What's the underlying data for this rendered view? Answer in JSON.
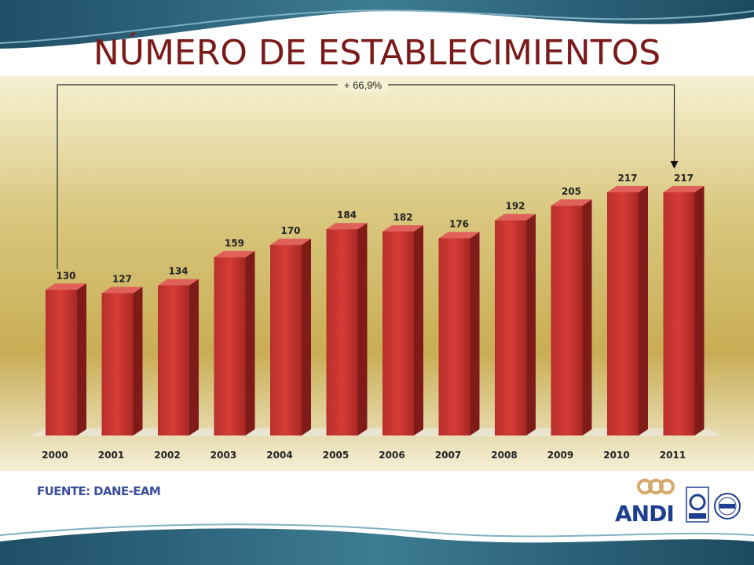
{
  "slide": {
    "title": "NÚMERO DE ESTABLECIMIENTOS",
    "source": "FUENTE: DANE-EAM",
    "logo": "ANDI",
    "colors": {
      "bar": "#c8302e",
      "title": "#7a1a1a",
      "source": "#3b4f9c",
      "wave": "#2c5f78"
    }
  },
  "chart_data": {
    "type": "bar",
    "categories": [
      "2000",
      "2001",
      "2002",
      "2003",
      "2004",
      "2005",
      "2006",
      "2007",
      "2008",
      "2009",
      "2010",
      "2011"
    ],
    "values": [
      130,
      127,
      134,
      159,
      170,
      184,
      182,
      176,
      192,
      205,
      217,
      217
    ],
    "title": "",
    "xlabel": "",
    "ylabel": "",
    "ylim": [
      0,
      217
    ],
    "annotation": "+ 66,9%",
    "grid": false
  }
}
